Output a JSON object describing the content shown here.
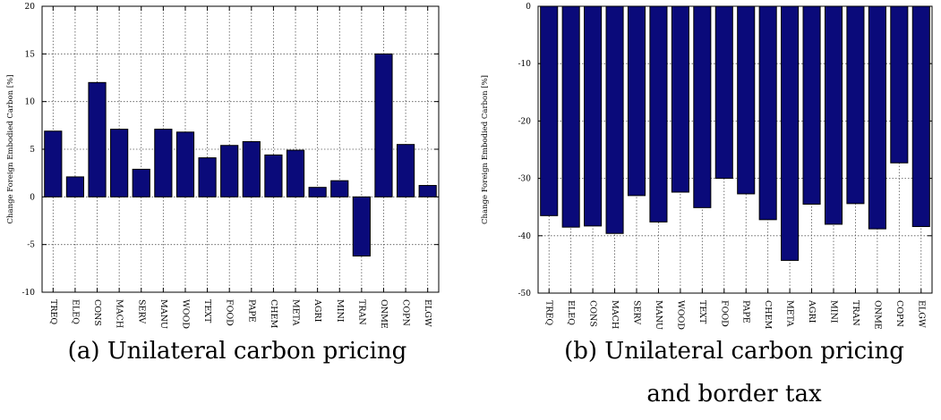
{
  "chart_data": [
    {
      "type": "bar",
      "ylabel": "Change Foreign Embodied Carbon [%]",
      "ylim": [
        -10,
        20
      ],
      "yticks": [
        -10,
        -5,
        0,
        5,
        10,
        15,
        20
      ],
      "grid": true,
      "bar_color": "#0a0a7a",
      "categories": [
        "TREQ",
        "ELEQ",
        "CONS",
        "MACH",
        "SERV",
        "MANU",
        "WOOD",
        "TEXT",
        "FOOD",
        "PAPE",
        "CHEM",
        "META",
        "AGRI",
        "MINI",
        "TRAN",
        "ONME",
        "COPN",
        "ELGW"
      ],
      "values": [
        6.9,
        2.1,
        12.0,
        7.1,
        2.9,
        7.1,
        6.8,
        4.1,
        5.4,
        5.8,
        4.4,
        4.9,
        1.0,
        1.7,
        -6.2,
        15.0,
        5.5,
        1.2
      ],
      "caption": [
        "(a) Unilateral carbon pricing"
      ]
    },
    {
      "type": "bar",
      "ylabel": "Change Foreign Embodied Carbon [%]",
      "ylim": [
        -50,
        0
      ],
      "yticks": [
        -50,
        -40,
        -30,
        -20,
        -10,
        0
      ],
      "grid": true,
      "bar_color": "#0a0a7a",
      "categories": [
        "TREQ",
        "ELEQ",
        "CONS",
        "MACH",
        "SERV",
        "MANU",
        "WOOD",
        "TEXT",
        "FOOD",
        "PAPE",
        "CHEM",
        "META",
        "AGRI",
        "MINI",
        "TRAN",
        "ONME",
        "COPN",
        "ELGW"
      ],
      "values": [
        -36.5,
        -38.5,
        -38.3,
        -39.6,
        -33.0,
        -37.6,
        -32.4,
        -35.1,
        -30.0,
        -32.7,
        -37.2,
        -44.3,
        -34.5,
        -38.0,
        -34.4,
        -38.8,
        -27.3,
        -38.4
      ],
      "caption": [
        "(b) Unilateral carbon pricing",
        "and border tax"
      ]
    }
  ]
}
